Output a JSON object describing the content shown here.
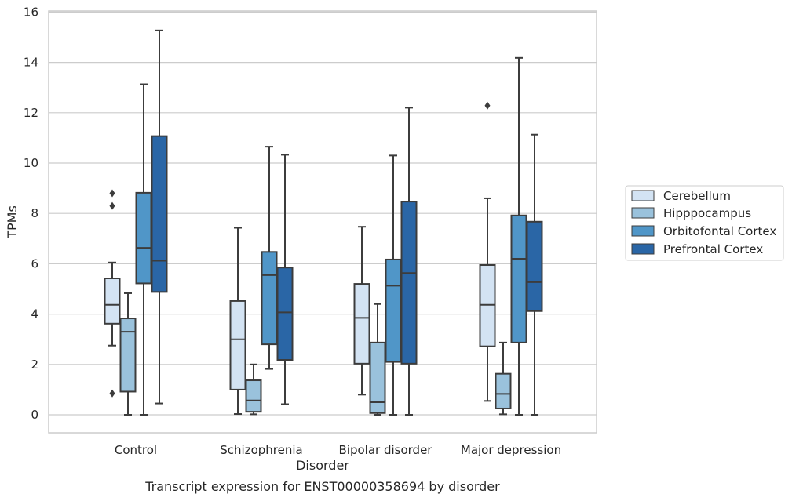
{
  "chart_data": {
    "type": "box",
    "title": "",
    "caption": "Transcript expression for ENST00000358694 by disorder",
    "xlabel": "Disorder",
    "ylabel": "TPMs",
    "ylim": [
      -0.7,
      16.1
    ],
    "yticks": [
      0,
      2,
      4,
      6,
      8,
      10,
      12,
      14,
      16
    ],
    "grid": true,
    "legend_position": "right",
    "categories": [
      "Control",
      "Schizophrenia",
      "Bipolar disorder",
      "Major depression"
    ],
    "series": [
      {
        "name": "Cerebellum",
        "color": "#d3e3f3",
        "boxes": [
          {
            "whislo": 2.75,
            "q1": 3.62,
            "med": 4.37,
            "q3": 5.42,
            "whishi": 6.05,
            "fliers": [
              0.85,
              8.3,
              8.8
            ]
          },
          {
            "whislo": 0.03,
            "q1": 1.0,
            "med": 3.0,
            "q3": 4.52,
            "whishi": 7.43,
            "fliers": []
          },
          {
            "whislo": 0.8,
            "q1": 2.03,
            "med": 3.85,
            "q3": 5.2,
            "whishi": 7.47,
            "fliers": []
          },
          {
            "whislo": 0.55,
            "q1": 2.72,
            "med": 4.37,
            "q3": 5.95,
            "whishi": 8.6,
            "fliers": [
              12.28
            ]
          }
        ]
      },
      {
        "name": "Hipppocampus",
        "color": "#9ac2dc",
        "boxes": [
          {
            "whislo": 0.0,
            "q1": 0.92,
            "med": 3.3,
            "q3": 3.83,
            "whishi": 4.83,
            "fliers": []
          },
          {
            "whislo": 0.02,
            "q1": 0.12,
            "med": 0.57,
            "q3": 1.37,
            "whishi": 2.0,
            "fliers": []
          },
          {
            "whislo": 0.0,
            "q1": 0.07,
            "med": 0.5,
            "q3": 2.87,
            "whishi": 4.4,
            "fliers": []
          },
          {
            "whislo": 0.02,
            "q1": 0.25,
            "med": 0.83,
            "q3": 1.63,
            "whishi": 2.87,
            "fliers": []
          }
        ]
      },
      {
        "name": "Orbitofontal Cortex",
        "color": "#5096c8",
        "boxes": [
          {
            "whislo": 0.0,
            "q1": 5.22,
            "med": 6.63,
            "q3": 8.82,
            "whishi": 13.13,
            "fliers": []
          },
          {
            "whislo": 1.82,
            "q1": 2.8,
            "med": 5.55,
            "q3": 6.47,
            "whishi": 10.65,
            "fliers": []
          },
          {
            "whislo": 0.0,
            "q1": 2.1,
            "med": 5.13,
            "q3": 6.17,
            "whishi": 10.3,
            "fliers": []
          },
          {
            "whislo": 0.0,
            "q1": 2.87,
            "med": 6.2,
            "q3": 7.92,
            "whishi": 14.18,
            "fliers": []
          }
        ]
      },
      {
        "name": "Prefrontal Cortex",
        "color": "#2a66a6",
        "boxes": [
          {
            "whislo": 0.45,
            "q1": 4.88,
            "med": 6.12,
            "q3": 11.07,
            "whishi": 15.27,
            "fliers": []
          },
          {
            "whislo": 0.42,
            "q1": 2.18,
            "med": 4.07,
            "q3": 5.85,
            "whishi": 10.33,
            "fliers": []
          },
          {
            "whislo": 0.0,
            "q1": 2.03,
            "med": 5.63,
            "q3": 8.47,
            "whishi": 12.2,
            "fliers": []
          },
          {
            "whislo": 0.0,
            "q1": 4.12,
            "med": 5.27,
            "q3": 7.67,
            "whishi": 11.13,
            "fliers": []
          }
        ]
      }
    ]
  }
}
